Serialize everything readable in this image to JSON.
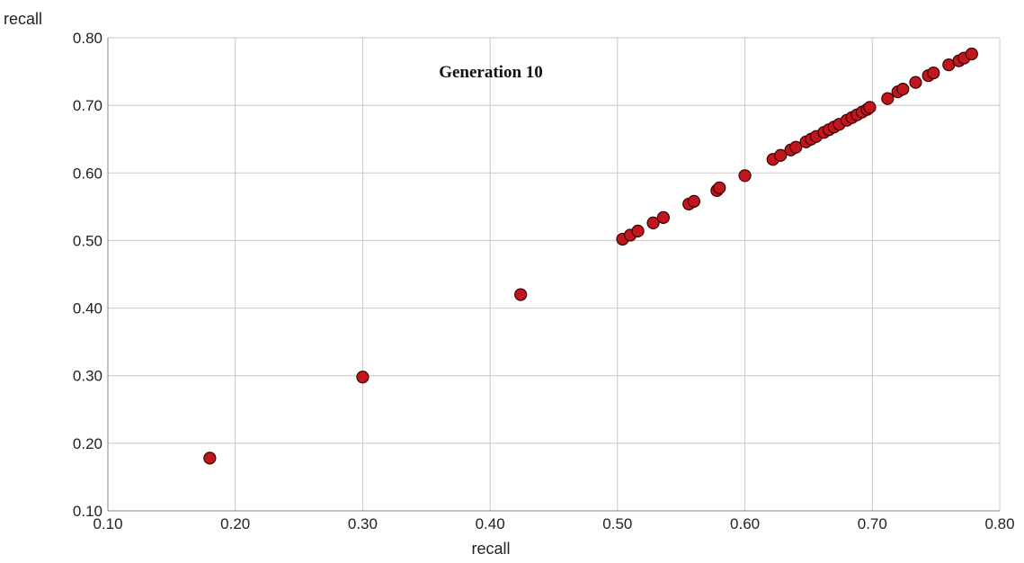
{
  "chart_data": {
    "type": "scatter",
    "title": "Generation 10",
    "xlabel": "recall",
    "ylabel": "recall",
    "xlim": [
      0.1,
      0.8
    ],
    "ylim": [
      0.1,
      0.8
    ],
    "xticks": [
      "0.10",
      "0.20",
      "0.30",
      "0.40",
      "0.50",
      "0.60",
      "0.70",
      "0.80"
    ],
    "yticks": [
      "0.10",
      "0.20",
      "0.30",
      "0.40",
      "0.50",
      "0.60",
      "0.70",
      "0.80"
    ],
    "grid": true,
    "point_color": "#c0161e",
    "series": [
      {
        "x": [
          0.18,
          0.3,
          0.424,
          0.504,
          0.51,
          0.516,
          0.528,
          0.536,
          0.556,
          0.56,
          0.578,
          0.58,
          0.6,
          0.622,
          0.628,
          0.636,
          0.64,
          0.648,
          0.652,
          0.656,
          0.662,
          0.666,
          0.67,
          0.674,
          0.68,
          0.684,
          0.688,
          0.692,
          0.696,
          0.698,
          0.712,
          0.72,
          0.724,
          0.734,
          0.744,
          0.748,
          0.76,
          0.768,
          0.772,
          0.778
        ],
        "y": [
          0.178,
          0.298,
          0.42,
          0.502,
          0.508,
          0.514,
          0.526,
          0.534,
          0.554,
          0.558,
          0.574,
          0.578,
          0.596,
          0.62,
          0.626,
          0.634,
          0.638,
          0.646,
          0.65,
          0.654,
          0.66,
          0.664,
          0.668,
          0.672,
          0.678,
          0.682,
          0.686,
          0.69,
          0.694,
          0.697,
          0.71,
          0.72,
          0.724,
          0.734,
          0.744,
          0.748,
          0.76,
          0.766,
          0.77,
          0.776
        ]
      }
    ]
  }
}
